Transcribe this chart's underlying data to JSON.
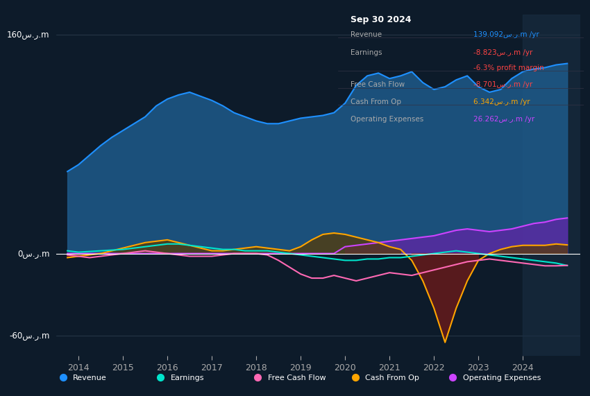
{
  "bg_color": "#0d1b2a",
  "plot_bg_color": "#0d1b2a",
  "ylim": [
    -75,
    175
  ],
  "xlim": [
    2013.5,
    2025.3
  ],
  "yticks": [
    -60,
    0,
    160
  ],
  "xtick_years": [
    2014,
    2015,
    2016,
    2017,
    2018,
    2019,
    2020,
    2021,
    2022,
    2023,
    2024
  ],
  "info_box": {
    "date": "Sep 30 2024",
    "rows": [
      {
        "label": "Revenue",
        "value": "139.092س.ر.m /yr",
        "color": "#1e90ff"
      },
      {
        "label": "Earnings",
        "value": "-8.823س.ر.m /yr",
        "color": "#ff4444"
      },
      {
        "label": "",
        "value": "-6.3% profit margin",
        "color": "#ff4444"
      },
      {
        "label": "Free Cash Flow",
        "value": "-8.701س.ر.m /yr",
        "color": "#ff4444"
      },
      {
        "label": "Cash From Op",
        "value": "6.342س.ر.m /yr",
        "color": "#ffa500"
      },
      {
        "label": "Operating Expenses",
        "value": "26.262س.ر.m /yr",
        "color": "#cc44ff"
      }
    ]
  },
  "legend": [
    {
      "label": "Revenue",
      "color": "#1e90ff"
    },
    {
      "label": "Earnings",
      "color": "#00e5cc"
    },
    {
      "label": "Free Cash Flow",
      "color": "#ff69b4"
    },
    {
      "label": "Cash From Op",
      "color": "#ffa500"
    },
    {
      "label": "Operating Expenses",
      "color": "#cc44ff"
    }
  ],
  "series": {
    "x": [
      2013.75,
      2014.0,
      2014.25,
      2014.5,
      2014.75,
      2015.0,
      2015.25,
      2015.5,
      2015.75,
      2016.0,
      2016.25,
      2016.5,
      2016.75,
      2017.0,
      2017.25,
      2017.5,
      2017.75,
      2018.0,
      2018.25,
      2018.5,
      2018.75,
      2019.0,
      2019.25,
      2019.5,
      2019.75,
      2020.0,
      2020.25,
      2020.5,
      2020.75,
      2021.0,
      2021.25,
      2021.5,
      2021.75,
      2022.0,
      2022.25,
      2022.5,
      2022.75,
      2023.0,
      2023.25,
      2023.5,
      2023.75,
      2024.0,
      2024.25,
      2024.5,
      2024.75,
      2025.0
    ],
    "revenue": [
      60,
      65,
      72,
      79,
      85,
      90,
      95,
      100,
      108,
      113,
      116,
      118,
      115,
      112,
      108,
      103,
      100,
      97,
      95,
      95,
      97,
      99,
      100,
      101,
      103,
      110,
      123,
      130,
      132,
      128,
      130,
      133,
      125,
      120,
      122,
      127,
      130,
      122,
      118,
      120,
      128,
      133,
      135,
      136,
      138,
      139
    ],
    "earnings": [
      2,
      1,
      1.5,
      2,
      2.5,
      3,
      4,
      5,
      6,
      7,
      7,
      6,
      5,
      4,
      3,
      3,
      2,
      2,
      2,
      1,
      0,
      -1,
      -2,
      -3,
      -4,
      -5,
      -5,
      -4,
      -4,
      -3,
      -3,
      -2,
      -1,
      0,
      1,
      2,
      1,
      0,
      -1,
      -2,
      -3,
      -4,
      -5,
      -6,
      -7,
      -8.8
    ],
    "free_cash_flow": [
      -1,
      -2,
      -3,
      -2,
      -1,
      0,
      1,
      2,
      1,
      0,
      -1,
      -2,
      -2,
      -2,
      -1,
      0,
      0,
      0,
      -1,
      -5,
      -10,
      -15,
      -18,
      -18,
      -16,
      -18,
      -20,
      -18,
      -16,
      -14,
      -15,
      -16,
      -14,
      -12,
      -10,
      -8,
      -6,
      -5,
      -4,
      -5,
      -6,
      -7,
      -8,
      -9,
      -9,
      -8.7
    ],
    "cash_from_op": [
      -3,
      -2,
      -1,
      0,
      2,
      4,
      6,
      8,
      9,
      10,
      8,
      6,
      4,
      2,
      2,
      3,
      4,
      5,
      4,
      3,
      2,
      5,
      10,
      14,
      15,
      14,
      12,
      10,
      8,
      5,
      3,
      -5,
      -20,
      -40,
      -65,
      -40,
      -20,
      -5,
      0,
      3,
      5,
      6,
      6,
      6,
      7,
      6.3
    ],
    "op_expenses": [
      0,
      0,
      0,
      0,
      0,
      0,
      0,
      0,
      0,
      0,
      0,
      0,
      0,
      0,
      0,
      0,
      0,
      0,
      0,
      0,
      0,
      0,
      0,
      0,
      0,
      5,
      6,
      7,
      8,
      9,
      10,
      11,
      12,
      13,
      15,
      17,
      18,
      17,
      16,
      17,
      18,
      20,
      22,
      23,
      25,
      26
    ]
  }
}
